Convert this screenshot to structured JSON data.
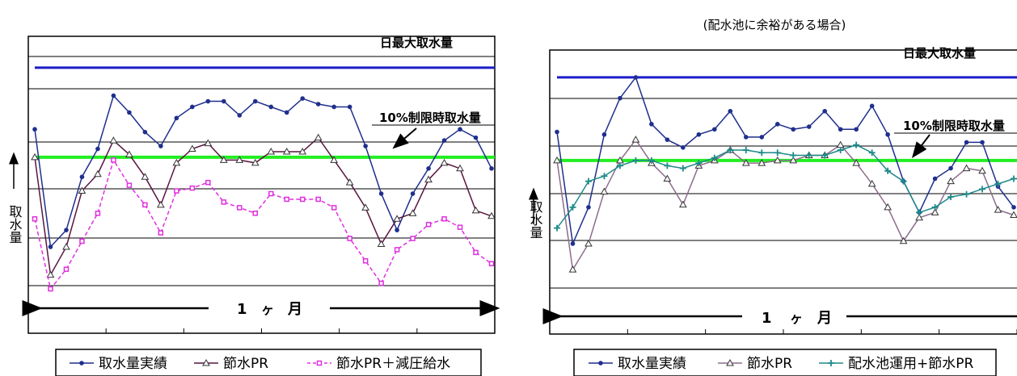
{
  "chart_data": [
    {
      "type": "line",
      "title": "",
      "ylabel": "取水量",
      "x_span_label_left": "1",
      "x_span_label_mid": "ヶ",
      "x_span_label_right": "月",
      "x": [
        1,
        2,
        3,
        4,
        5,
        6,
        7,
        8,
        9,
        10,
        11,
        12,
        13,
        14,
        15,
        16,
        17,
        18,
        19,
        20,
        21,
        22,
        23,
        24,
        25,
        26,
        27,
        28,
        29,
        30
      ],
      "ylim": [
        0,
        10
      ],
      "grid": "horizontal",
      "reference_lines": [
        {
          "label": "日最大取水量",
          "value": 9.6,
          "color": "#1c1cc8"
        },
        {
          "label": "10%制限時取水量",
          "value": 6.4,
          "color": "#22ee22"
        }
      ],
      "series": [
        {
          "name": "取水量実績",
          "color": "#1f2f8c",
          "marker": "dot",
          "values": [
            7.4,
            3.2,
            3.8,
            5.7,
            6.7,
            8.6,
            8.0,
            7.3,
            6.8,
            7.8,
            8.2,
            8.4,
            8.4,
            7.9,
            8.4,
            8.2,
            8.0,
            8.5,
            8.3,
            8.2,
            8.2,
            6.8,
            5.1,
            3.8,
            5.1,
            6.0,
            7.0,
            7.4,
            7.1,
            6.0
          ]
        },
        {
          "name": "節水PR",
          "color": "#5a1540",
          "marker": "triangle",
          "values": [
            6.4,
            2.2,
            3.2,
            5.2,
            5.8,
            7.0,
            6.5,
            5.7,
            4.7,
            6.2,
            6.7,
            6.9,
            6.3,
            6.3,
            6.2,
            6.6,
            6.6,
            6.6,
            7.1,
            6.3,
            5.5,
            4.6,
            3.3,
            4.2,
            4.4,
            5.6,
            6.2,
            6.0,
            4.5,
            4.3
          ]
        },
        {
          "name": "節水PR＋減圧給水",
          "color": "#e030e0",
          "marker": "square",
          "dashed": true,
          "values": [
            4.2,
            1.7,
            2.4,
            3.4,
            4.4,
            6.3,
            5.4,
            4.7,
            3.7,
            5.2,
            5.3,
            5.5,
            4.8,
            4.6,
            4.4,
            5.1,
            4.9,
            4.9,
            4.9,
            4.6,
            3.5,
            2.7,
            1.9,
            3.1,
            3.5,
            4.0,
            4.2,
            3.9,
            3.0,
            2.6
          ]
        }
      ],
      "legend": "bottom"
    },
    {
      "type": "line",
      "title": "(配水池に余裕がある場合)",
      "ylabel": "取水量",
      "x_span_label_left": "1",
      "x_span_label_mid": "ヶ",
      "x_span_label_right": "月",
      "x": [
        1,
        2,
        3,
        4,
        5,
        6,
        7,
        8,
        9,
        10,
        11,
        12,
        13,
        14,
        15,
        16,
        17,
        18,
        19,
        20,
        21,
        22,
        23,
        24,
        25,
        26,
        27,
        28,
        29,
        30
      ],
      "ylim": [
        0,
        10
      ],
      "grid": "horizontal",
      "reference_lines": [
        {
          "label": "日最大取水量",
          "value": 9.6,
          "color": "#1c1cc8"
        },
        {
          "label": "10%制限時取水量",
          "value": 6.4,
          "color": "#22ee22"
        }
      ],
      "series": [
        {
          "name": "取水量実績",
          "color": "#1f2f8c",
          "marker": "dot",
          "values": [
            7.5,
            3.2,
            4.6,
            7.4,
            8.8,
            9.6,
            7.8,
            7.2,
            6.9,
            7.4,
            7.6,
            8.3,
            7.3,
            7.3,
            7.8,
            7.6,
            7.7,
            8.3,
            7.6,
            7.6,
            8.5,
            7.4,
            5.6,
            4.4,
            5.7,
            6.1,
            7.1,
            7.1,
            5.4,
            4.6
          ]
        },
        {
          "name": "節水PR",
          "color": "#8c6d8c",
          "marker": "triangle",
          "values": [
            6.4,
            2.2,
            3.2,
            5.2,
            6.4,
            7.2,
            6.3,
            5.7,
            4.7,
            6.2,
            6.4,
            6.8,
            6.3,
            6.3,
            6.4,
            6.4,
            6.6,
            6.6,
            7.0,
            6.3,
            5.5,
            4.6,
            3.3,
            4.2,
            4.4,
            5.6,
            6.1,
            6.0,
            4.5,
            4.3
          ]
        },
        {
          "name": "配水池運用+節水PR",
          "color": "#1f8a8a",
          "marker": "plus",
          "values": [
            3.8,
            4.6,
            5.6,
            5.8,
            6.2,
            6.4,
            6.4,
            6.2,
            6.1,
            6.3,
            6.5,
            6.8,
            6.8,
            6.7,
            6.7,
            6.6,
            6.6,
            6.6,
            6.8,
            7.0,
            6.7,
            6.0,
            5.6,
            4.4,
            4.6,
            5.0,
            5.1,
            5.3,
            5.5,
            5.7
          ]
        }
      ],
      "legend": "bottom"
    }
  ]
}
